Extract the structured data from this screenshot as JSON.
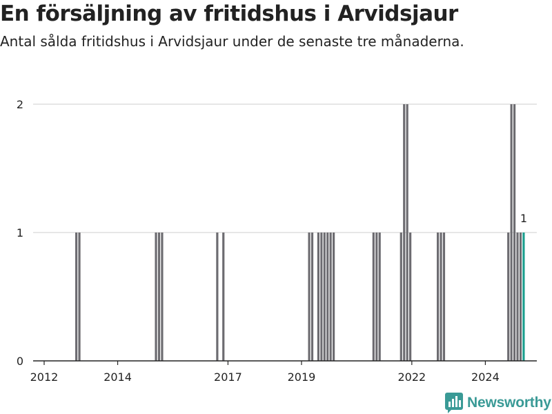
{
  "title": "En försäljning av fritidshus i Arvidsjaur",
  "subtitle": "Antal sålda fritidshus i Arvidsjaur under de senaste tre månaderna.",
  "brand": {
    "name": "Newsworthy",
    "color": "#3a9a96",
    "icon": "bar-chart-badge-icon"
  },
  "colors": {
    "bar": "#6d6c71",
    "highlight": "#1a9e8e",
    "grid": "#dddddd",
    "axis": "#222222"
  },
  "chart_data": {
    "type": "bar",
    "title": "En försäljning av fritidshus i Arvidsjaur",
    "xlabel": "",
    "ylabel": "",
    "ylim": [
      0,
      2
    ],
    "yticks": [
      "0",
      "1",
      "2"
    ],
    "xticks": [
      {
        "label": "2012",
        "year": 2012.0
      },
      {
        "label": "2014",
        "year": 2014.0
      },
      {
        "label": "2017",
        "year": 2017.0
      },
      {
        "label": "2019",
        "year": 2019.0
      },
      {
        "label": "2022",
        "year": 2022.0
      },
      {
        "label": "2024",
        "year": 2024.0
      }
    ],
    "xrange": [
      2011.7,
      2025.4
    ],
    "grid": true,
    "legend": "none",
    "annotation": {
      "text": "1",
      "date": "2025-01"
    },
    "points": [
      {
        "date": "2012-11",
        "value": 1
      },
      {
        "date": "2012-12",
        "value": 1
      },
      {
        "date": "2015-01",
        "value": 1
      },
      {
        "date": "2015-02",
        "value": 1
      },
      {
        "date": "2015-03",
        "value": 1
      },
      {
        "date": "2016-09",
        "value": 1
      },
      {
        "date": "2016-11",
        "value": 1
      },
      {
        "date": "2019-03",
        "value": 1
      },
      {
        "date": "2019-04",
        "value": 1
      },
      {
        "date": "2019-06",
        "value": 1
      },
      {
        "date": "2019-07",
        "value": 1
      },
      {
        "date": "2019-08",
        "value": 1
      },
      {
        "date": "2019-09",
        "value": 1
      },
      {
        "date": "2019-10",
        "value": 1
      },
      {
        "date": "2019-11",
        "value": 1
      },
      {
        "date": "2020-12",
        "value": 1
      },
      {
        "date": "2021-01",
        "value": 1
      },
      {
        "date": "2021-02",
        "value": 1
      },
      {
        "date": "2021-09",
        "value": 1
      },
      {
        "date": "2021-10",
        "value": 2
      },
      {
        "date": "2021-11",
        "value": 2
      },
      {
        "date": "2021-12",
        "value": 1
      },
      {
        "date": "2022-09",
        "value": 1
      },
      {
        "date": "2022-10",
        "value": 1
      },
      {
        "date": "2022-11",
        "value": 1
      },
      {
        "date": "2024-08",
        "value": 1
      },
      {
        "date": "2024-09",
        "value": 2
      },
      {
        "date": "2024-10",
        "value": 2
      },
      {
        "date": "2024-11",
        "value": 1
      },
      {
        "date": "2024-12",
        "value": 1
      },
      {
        "date": "2025-01",
        "value": 1
      }
    ],
    "highlight_date": "2025-01"
  }
}
